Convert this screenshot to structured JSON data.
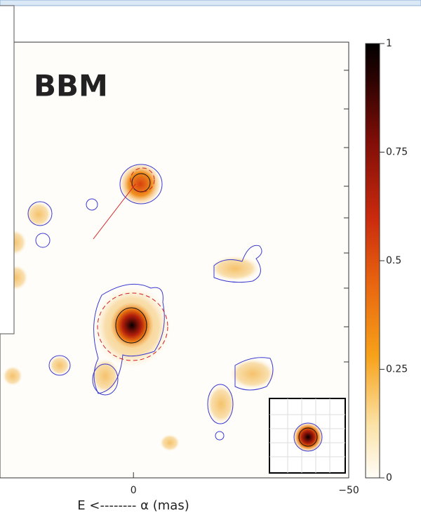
{
  "chart_data": {
    "type": "image",
    "annotation": "BBM",
    "xlabel": "E <-------- α (mas)",
    "xlim": [
      31,
      -50
    ],
    "xticks": [
      0,
      {
        "value": -50,
        "label": "−50"
      }
    ],
    "colorlim": [
      0,
      1
    ],
    "colorticks": [
      0,
      0.25,
      0.5,
      0.75,
      1
    ]
  }
}
